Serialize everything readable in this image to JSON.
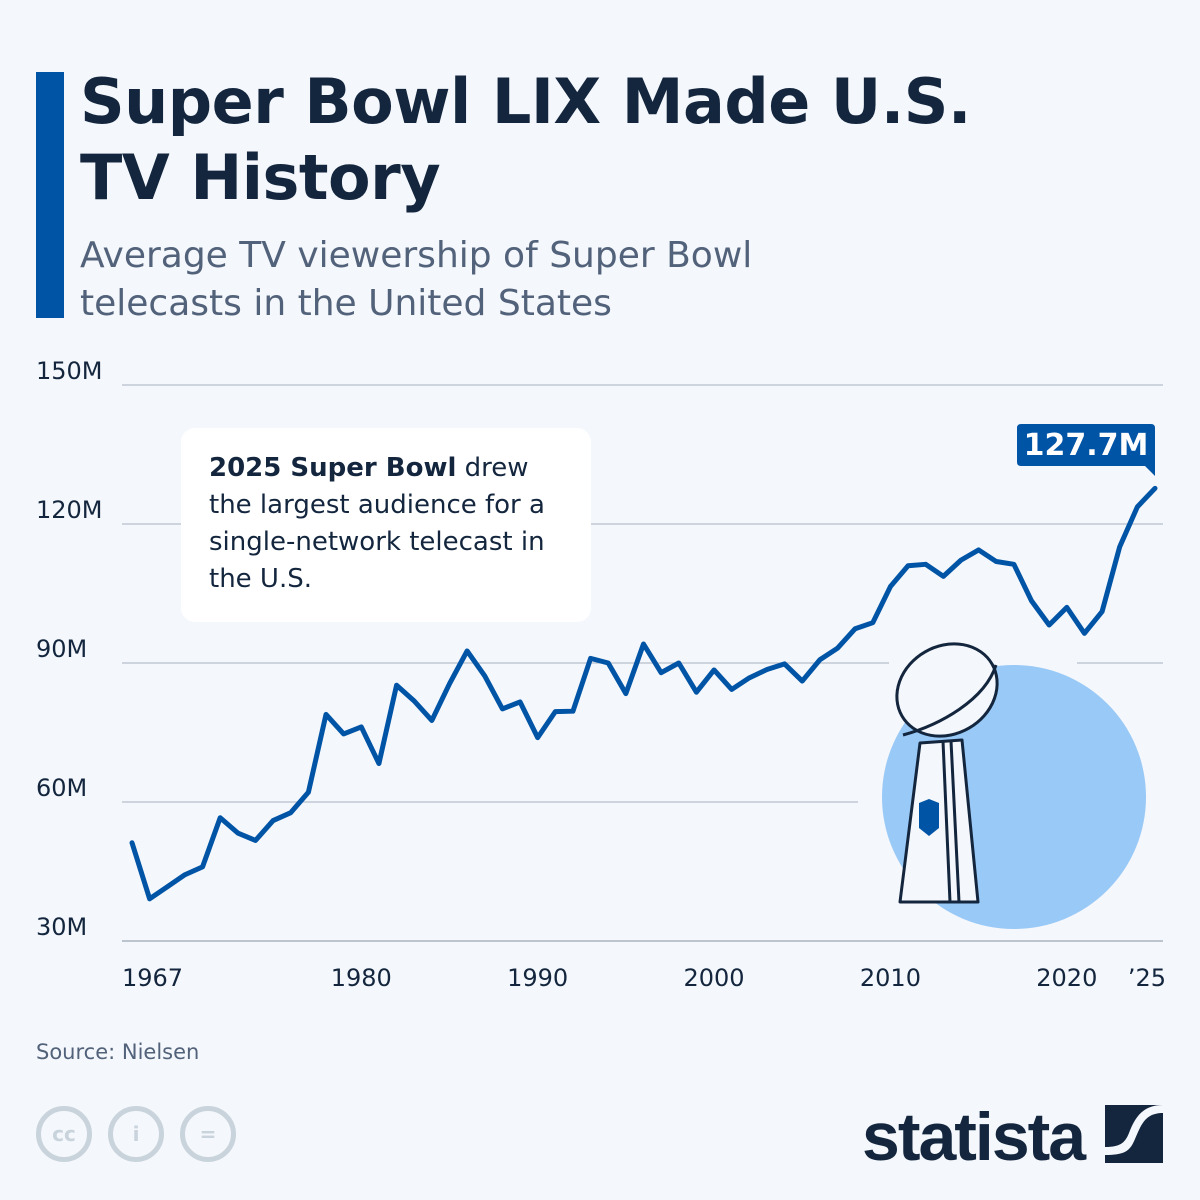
{
  "header": {
    "title": "Super Bowl LIX Made U.S. TV History",
    "subtitle": "Average TV viewership of Super Bowl telecasts in the United States"
  },
  "annotation": {
    "bold": "2025 Super Bowl",
    "rest": " drew the largest audience for a single-network telecast in the U.S."
  },
  "callout": "127.7M",
  "footer": {
    "source": "Source: Nielsen",
    "logo": "statista",
    "license_icons": [
      "cc-icon",
      "attribution-icon",
      "no-derivatives-icon"
    ]
  },
  "colors": {
    "line": "#0054a6",
    "accent_bar": "#0054a6",
    "circle": "#99c9f7",
    "text": "#13263e"
  },
  "chart_data": {
    "type": "line",
    "title": "Average TV viewership of Super Bowl telecasts in the United States",
    "ylim": [
      30,
      150
    ],
    "y_ticks": [
      "30M",
      "60M",
      "90M",
      "120M",
      "150M"
    ],
    "x_ticks": [
      {
        "year": 1967,
        "label": "1967"
      },
      {
        "year": 1980,
        "label": "1980"
      },
      {
        "year": 1990,
        "label": "1990"
      },
      {
        "year": 2000,
        "label": "2000"
      },
      {
        "year": 2010,
        "label": "2010"
      },
      {
        "year": 2020,
        "label": "2020"
      },
      {
        "year": 2025,
        "label": "’25"
      }
    ],
    "grid": true,
    "unit": "million viewers",
    "x": [
      1967,
      1968,
      1969,
      1970,
      1971,
      1972,
      1973,
      1974,
      1975,
      1976,
      1977,
      1978,
      1979,
      1980,
      1981,
      1982,
      1983,
      1984,
      1985,
      1986,
      1987,
      1988,
      1989,
      1990,
      1991,
      1992,
      1993,
      1994,
      1995,
      1996,
      1997,
      1998,
      1999,
      2000,
      2001,
      2002,
      2003,
      2004,
      2005,
      2006,
      2007,
      2008,
      2009,
      2010,
      2011,
      2012,
      2013,
      2014,
      2015,
      2016,
      2017,
      2018,
      2019,
      2020,
      2021,
      2022,
      2023,
      2024,
      2025
    ],
    "values": [
      51.2,
      39.1,
      41.7,
      44.3,
      46.0,
      56.6,
      53.3,
      51.7,
      56.0,
      57.7,
      62.1,
      78.9,
      74.7,
      76.2,
      68.3,
      85.2,
      81.8,
      77.6,
      85.5,
      92.6,
      87.2,
      80.1,
      81.6,
      73.9,
      79.5,
      79.6,
      91.0,
      90.0,
      83.4,
      94.1,
      87.9,
      90.0,
      83.7,
      88.5,
      84.3,
      86.8,
      88.6,
      89.8,
      86.1,
      90.7,
      93.2,
      97.4,
      98.7,
      106.5,
      111.0,
      111.3,
      108.7,
      112.2,
      114.4,
      111.9,
      111.3,
      103.4,
      98.2,
      102.0,
      96.4,
      101.1,
      115.1,
      123.7,
      127.7
    ]
  }
}
